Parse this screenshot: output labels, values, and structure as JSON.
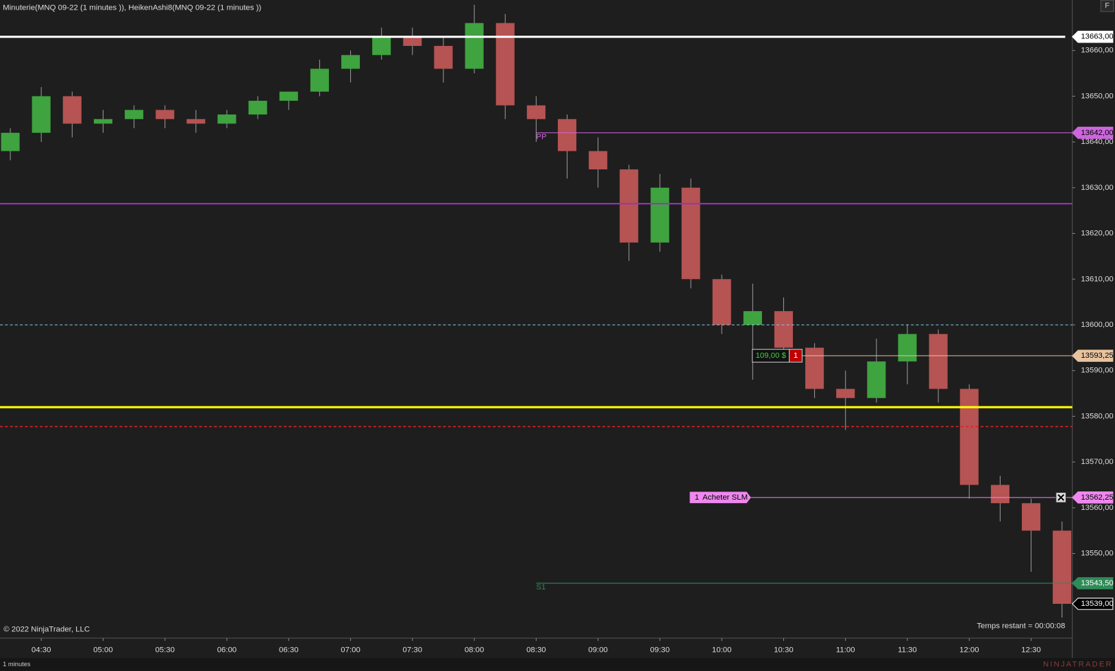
{
  "chart_data": {
    "type": "candlestick",
    "title": "Minuterie(MNQ 09-22 (1 minutes )), HeikenAshi8(MNQ 09-22 (1 minutes ))",
    "copyright": "© 2022 NinjaTrader, LLC",
    "timer": "Temps restant = 00:00:08",
    "period": "1 minutes",
    "brand": "NINJATRADER",
    "corner_button": "F",
    "x": [
      "04:15",
      "04:30",
      "04:45",
      "05:00",
      "05:15",
      "05:30",
      "05:45",
      "06:00",
      "06:15",
      "06:30",
      "06:45",
      "07:00",
      "07:15",
      "07:30",
      "07:45",
      "08:00",
      "08:15",
      "08:30",
      "08:45",
      "09:00",
      "09:15",
      "09:30",
      "09:45",
      "10:00",
      "10:15",
      "10:30",
      "10:45",
      "11:00",
      "11:15",
      "11:30",
      "11:45",
      "12:00",
      "12:15",
      "12:30",
      "12:45"
    ],
    "open": [
      13638,
      13642,
      13650,
      13644,
      13645,
      13647,
      13645,
      13644,
      13646,
      13649,
      13651,
      13656,
      13659,
      13663,
      13661,
      13656,
      13666,
      13648,
      13645,
      13638,
      13634,
      13618,
      13630,
      13610,
      13600,
      13603,
      13595,
      13586,
      13584,
      13592,
      13598,
      13586,
      13565,
      13561,
      13555
    ],
    "high": [
      13643,
      13652,
      13651,
      13647,
      13648,
      13648,
      13647,
      13647,
      13650,
      13651,
      13658,
      13660,
      13665,
      13665,
      13663,
      13670,
      13668,
      13650,
      13646,
      13641,
      13635,
      13633,
      13632,
      13611,
      13609,
      13606,
      13596,
      13590,
      13597,
      13600,
      13599,
      13587,
      13567,
      13562,
      13557
    ],
    "low": [
      13636,
      13640,
      13641,
      13642,
      13643,
      13643,
      13642,
      13643,
      13645,
      13647,
      13650,
      13653,
      13658,
      13659,
      13653,
      13655,
      13645,
      13640,
      13632,
      13630,
      13614,
      13616,
      13608,
      13598,
      13588,
      13592,
      13584,
      13577,
      13583,
      13587,
      13583,
      13562,
      13557,
      13546,
      13536
    ],
    "close": [
      13642,
      13650,
      13644,
      13645,
      13647,
      13645,
      13644,
      13646,
      13649,
      13651,
      13656,
      13659,
      13663,
      13661,
      13656,
      13666,
      13648,
      13645,
      13638,
      13634,
      13618,
      13630,
      13610,
      13600,
      13603,
      13595,
      13586,
      13584,
      13592,
      13598,
      13586,
      13565,
      13561,
      13555,
      13539
    ],
    "up_color": "#3fa33f",
    "down_color": "#b65353",
    "xlim": [
      "04:10",
      "12:50"
    ],
    "xticks": [
      "04:30",
      "05:00",
      "05:30",
      "06:00",
      "06:30",
      "07:00",
      "07:30",
      "08:00",
      "08:30",
      "09:00",
      "09:30",
      "10:00",
      "10:30",
      "11:00",
      "11:30",
      "12:00",
      "12:30"
    ],
    "ylim": [
      13531.5,
      13671
    ],
    "yticks": [
      {
        "value": 13550,
        "label": "13550,00"
      },
      {
        "value": 13560,
        "label": "13560,00"
      },
      {
        "value": 13570,
        "label": "13570,00"
      },
      {
        "value": 13580,
        "label": "13580,00"
      },
      {
        "value": 13590,
        "label": "13590,00"
      },
      {
        "value": 13600,
        "label": "13600,00"
      },
      {
        "value": 13610,
        "label": "13610,00"
      },
      {
        "value": 13620,
        "label": "13620,00"
      },
      {
        "value": 13630,
        "label": "13630,00"
      },
      {
        "value": 13640,
        "label": "13640,00"
      },
      {
        "value": 13650,
        "label": "13650,00"
      },
      {
        "value": 13660,
        "label": "13660,00"
      }
    ],
    "levels": [
      {
        "value": 13663,
        "label": "13663,00",
        "color": "#ffffff",
        "width": 3,
        "style": "solid"
      },
      {
        "value": 13642,
        "label": "13642,00",
        "color": "#cc66dd",
        "width": 1,
        "style": "solid",
        "name": "PP",
        "from": "08:30"
      },
      {
        "value": 13626.5,
        "color": "#9933bb",
        "width": 2,
        "style": "solid"
      },
      {
        "value": 13600,
        "color": "#87ceeb",
        "width": 1,
        "style": "dashed"
      },
      {
        "value": 13593.25,
        "label": "13593,25",
        "color": "#e8c39e",
        "width": 1,
        "style": "solid",
        "pnl": "109,00 $",
        "qty": 1
      },
      {
        "value": 13582,
        "color": "#ffff00",
        "width": 3,
        "style": "solid"
      },
      {
        "value": 13577.75,
        "color": "#dd2222",
        "width": 1.5,
        "style": "dashed"
      },
      {
        "value": 13562.25,
        "label": "13562,25",
        "color": "#ee88ee",
        "width": 1,
        "style": "solid",
        "qty": 1,
        "order": "Acheter SLM"
      },
      {
        "value": 13543.5,
        "label": "13543,50",
        "color": "#2e8b57",
        "width": 1,
        "style": "solid",
        "name": "S1",
        "from": "08:30"
      },
      {
        "value": 13539,
        "label": "13539,00",
        "color": "#000000",
        "style": "none"
      }
    ]
  }
}
